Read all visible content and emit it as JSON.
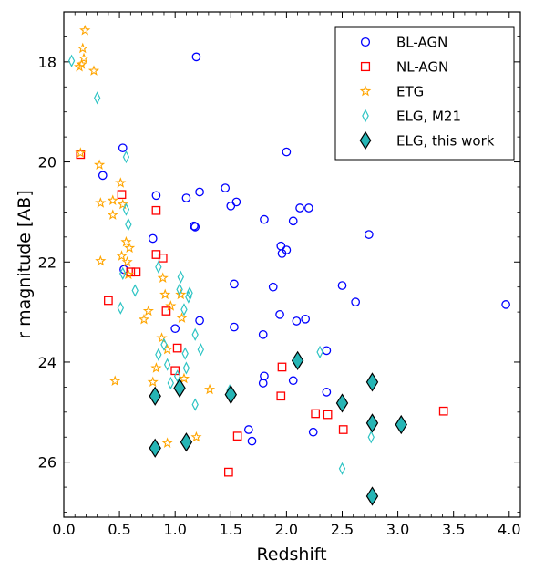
{
  "chart_data": {
    "type": "scatter",
    "xlabel": "Redshift",
    "ylabel": "r magnitude [AB]",
    "xlim": [
      0.0,
      4.1
    ],
    "ylim": [
      27.1,
      17.0
    ],
    "y_inverted": true,
    "x_ticks": [
      0.0,
      0.5,
      1.0,
      1.5,
      2.0,
      2.5,
      3.0,
      3.5,
      4.0
    ],
    "x_tick_labels": [
      "0.0",
      "0.5",
      "1.0",
      "1.5",
      "2.0",
      "2.5",
      "3.0",
      "3.5",
      "4.0"
    ],
    "y_ticks": [
      18,
      20,
      22,
      24,
      26
    ],
    "y_tick_labels": [
      "18",
      "20",
      "22",
      "24",
      "26"
    ],
    "legend_position": "top-right",
    "series": [
      {
        "name": "BL-AGN",
        "marker": "circle",
        "color": "#0000ff",
        "filled": false,
        "points": [
          [
            1.19,
            17.9
          ],
          [
            2.0,
            19.8
          ],
          [
            0.35,
            20.27
          ],
          [
            0.53,
            19.72
          ],
          [
            0.83,
            20.67
          ],
          [
            1.1,
            20.72
          ],
          [
            1.22,
            20.6
          ],
          [
            1.45,
            20.52
          ],
          [
            1.5,
            20.88
          ],
          [
            1.55,
            20.8
          ],
          [
            2.12,
            20.92
          ],
          [
            2.2,
            20.92
          ],
          [
            1.8,
            21.15
          ],
          [
            2.06,
            21.18
          ],
          [
            1.17,
            21.28
          ],
          [
            1.18,
            21.3
          ],
          [
            1.95,
            21.68
          ],
          [
            1.96,
            21.83
          ],
          [
            2.0,
            21.76
          ],
          [
            2.74,
            21.45
          ],
          [
            0.8,
            21.53
          ],
          [
            0.54,
            22.15
          ],
          [
            1.53,
            22.44
          ],
          [
            1.88,
            22.5
          ],
          [
            2.5,
            22.47
          ],
          [
            2.62,
            22.8
          ],
          [
            3.97,
            22.85
          ],
          [
            1.22,
            23.17
          ],
          [
            1.94,
            23.05
          ],
          [
            2.09,
            23.18
          ],
          [
            2.17,
            23.14
          ],
          [
            1.53,
            23.3
          ],
          [
            1.0,
            23.33
          ],
          [
            1.79,
            23.45
          ],
          [
            2.36,
            23.77
          ],
          [
            1.8,
            24.28
          ],
          [
            1.79,
            24.42
          ],
          [
            2.06,
            24.37
          ],
          [
            2.36,
            24.6
          ],
          [
            1.66,
            25.35
          ],
          [
            1.69,
            25.58
          ],
          [
            2.24,
            25.4
          ]
        ]
      },
      {
        "name": "NL-AGN",
        "marker": "square",
        "color": "#ff0000",
        "filled": false,
        "points": [
          [
            0.15,
            19.85
          ],
          [
            0.52,
            20.65
          ],
          [
            0.83,
            20.97
          ],
          [
            0.83,
            21.85
          ],
          [
            0.89,
            21.92
          ],
          [
            0.6,
            22.2
          ],
          [
            0.65,
            22.2
          ],
          [
            0.4,
            22.77
          ],
          [
            0.92,
            22.98
          ],
          [
            1.02,
            23.72
          ],
          [
            1.0,
            24.17
          ],
          [
            1.96,
            24.1
          ],
          [
            1.95,
            24.68
          ],
          [
            2.26,
            25.03
          ],
          [
            2.37,
            25.05
          ],
          [
            2.51,
            25.35
          ],
          [
            1.56,
            25.48
          ],
          [
            1.48,
            26.2
          ],
          [
            3.41,
            24.98
          ]
        ]
      },
      {
        "name": "ETG",
        "marker": "star",
        "color": "#ffa500",
        "filled": false,
        "points": [
          [
            0.19,
            17.37
          ],
          [
            0.17,
            17.73
          ],
          [
            0.18,
            17.93
          ],
          [
            0.16,
            18.05
          ],
          [
            0.14,
            18.1
          ],
          [
            0.27,
            18.18
          ],
          [
            0.15,
            19.82
          ],
          [
            0.32,
            20.06
          ],
          [
            0.51,
            20.42
          ],
          [
            0.33,
            20.82
          ],
          [
            0.44,
            20.77
          ],
          [
            0.53,
            20.85
          ],
          [
            0.44,
            21.06
          ],
          [
            0.56,
            21.6
          ],
          [
            0.59,
            21.72
          ],
          [
            0.52,
            21.88
          ],
          [
            0.33,
            21.98
          ],
          [
            0.57,
            22.0
          ],
          [
            0.58,
            22.25
          ],
          [
            0.89,
            22.32
          ],
          [
            0.91,
            22.65
          ],
          [
            1.05,
            22.65
          ],
          [
            0.96,
            22.88
          ],
          [
            0.76,
            22.98
          ],
          [
            1.06,
            23.12
          ],
          [
            0.72,
            23.15
          ],
          [
            0.88,
            23.52
          ],
          [
            0.93,
            23.75
          ],
          [
            0.83,
            24.12
          ],
          [
            0.8,
            24.4
          ],
          [
            1.08,
            24.33
          ],
          [
            0.46,
            24.38
          ],
          [
            1.31,
            24.55
          ],
          [
            0.93,
            25.62
          ],
          [
            1.19,
            25.5
          ]
        ]
      },
      {
        "name": "ELG, M21",
        "marker": "thin-diamond",
        "color": "#2ec4c4",
        "filled": false,
        "points": [
          [
            0.07,
            17.98
          ],
          [
            0.3,
            18.72
          ],
          [
            0.56,
            19.9
          ],
          [
            0.56,
            20.95
          ],
          [
            0.58,
            21.25
          ],
          [
            0.53,
            22.23
          ],
          [
            0.64,
            22.57
          ],
          [
            0.51,
            22.92
          ],
          [
            0.85,
            22.1
          ],
          [
            1.05,
            22.3
          ],
          [
            1.13,
            22.62
          ],
          [
            1.12,
            22.7
          ],
          [
            1.04,
            22.55
          ],
          [
            1.08,
            22.95
          ],
          [
            1.18,
            23.45
          ],
          [
            0.9,
            23.65
          ],
          [
            1.23,
            23.75
          ],
          [
            0.85,
            23.85
          ],
          [
            0.93,
            24.05
          ],
          [
            1.09,
            23.83
          ],
          [
            1.1,
            24.12
          ],
          [
            0.96,
            24.42
          ],
          [
            1.02,
            24.28
          ],
          [
            1.18,
            24.85
          ],
          [
            1.49,
            24.57
          ],
          [
            2.3,
            23.8
          ],
          [
            2.5,
            26.13
          ],
          [
            2.76,
            25.5
          ]
        ]
      },
      {
        "name": "ELG, this work",
        "marker": "diamond",
        "color": "#26b5b5",
        "filled": true,
        "points": [
          [
            0.82,
            24.68
          ],
          [
            1.04,
            24.52
          ],
          [
            1.5,
            24.65
          ],
          [
            2.1,
            23.97
          ],
          [
            2.5,
            24.82
          ],
          [
            2.77,
            24.4
          ],
          [
            2.77,
            25.22
          ],
          [
            3.03,
            25.25
          ],
          [
            0.82,
            25.72
          ],
          [
            1.1,
            25.6
          ],
          [
            2.77,
            26.68
          ]
        ]
      }
    ]
  }
}
